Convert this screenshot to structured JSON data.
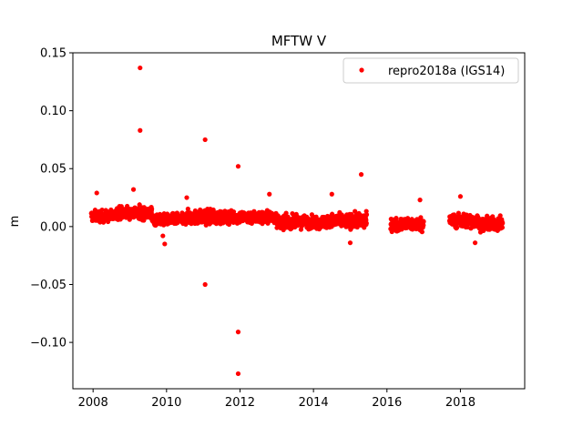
{
  "chart_data": {
    "type": "scatter",
    "title": "MFTW V",
    "xlabel": "",
    "ylabel": "m",
    "xlim": [
      2007.45,
      2019.75
    ],
    "ylim": [
      -0.14,
      0.15
    ],
    "xticks": [
      2008,
      2010,
      2012,
      2014,
      2016,
      2018
    ],
    "xtick_labels": [
      "2008",
      "2010",
      "2012",
      "2014",
      "2016",
      "2018"
    ],
    "yticks": [
      -0.1,
      -0.05,
      0.0,
      0.05,
      0.1,
      0.15
    ],
    "ytick_labels": [
      "−0.10",
      "−0.05",
      "0.00",
      "0.05",
      "0.10",
      "0.15"
    ],
    "grid": false,
    "legend_position": "top-right",
    "series": [
      {
        "name": "repro2018a (IGS14)",
        "color": "#ff0000",
        "marker": "circle",
        "segments": [
          {
            "x_start": 2007.95,
            "x_end": 2008.6,
            "center": 0.009,
            "spread": 0.008
          },
          {
            "x_start": 2008.6,
            "x_end": 2009.6,
            "center": 0.012,
            "spread": 0.009
          },
          {
            "x_start": 2009.6,
            "x_end": 2010.5,
            "center": 0.006,
            "spread": 0.008
          },
          {
            "x_start": 2010.5,
            "x_end": 2011.5,
            "center": 0.008,
            "spread": 0.01
          },
          {
            "x_start": 2011.5,
            "x_end": 2013.0,
            "center": 0.008,
            "spread": 0.009
          },
          {
            "x_start": 2013.0,
            "x_end": 2014.5,
            "center": 0.004,
            "spread": 0.009
          },
          {
            "x_start": 2014.5,
            "x_end": 2015.45,
            "center": 0.005,
            "spread": 0.01
          },
          {
            "x_start": 2016.1,
            "x_end": 2017.0,
            "center": 0.002,
            "spread": 0.009
          },
          {
            "x_start": 2017.7,
            "x_end": 2018.5,
            "center": 0.005,
            "spread": 0.01
          },
          {
            "x_start": 2018.5,
            "x_end": 2019.15,
            "center": 0.002,
            "spread": 0.009
          }
        ],
        "outliers": [
          {
            "x": 2009.28,
            "y": 0.137
          },
          {
            "x": 2009.28,
            "y": 0.083
          },
          {
            "x": 2011.05,
            "y": 0.075
          },
          {
            "x": 2011.05,
            "y": -0.05
          },
          {
            "x": 2011.95,
            "y": 0.052
          },
          {
            "x": 2011.95,
            "y": -0.091
          },
          {
            "x": 2011.95,
            "y": -0.127
          },
          {
            "x": 2015.3,
            "y": 0.045
          },
          {
            "x": 2009.1,
            "y": 0.032
          },
          {
            "x": 2008.1,
            "y": 0.029
          },
          {
            "x": 2009.95,
            "y": -0.015
          },
          {
            "x": 2009.9,
            "y": -0.008
          },
          {
            "x": 2010.55,
            "y": 0.025
          },
          {
            "x": 2014.5,
            "y": 0.028
          },
          {
            "x": 2015.0,
            "y": -0.014
          },
          {
            "x": 2016.9,
            "y": 0.023
          },
          {
            "x": 2018.0,
            "y": 0.026
          },
          {
            "x": 2018.4,
            "y": -0.014
          },
          {
            "x": 2012.8,
            "y": 0.028
          }
        ]
      }
    ]
  }
}
